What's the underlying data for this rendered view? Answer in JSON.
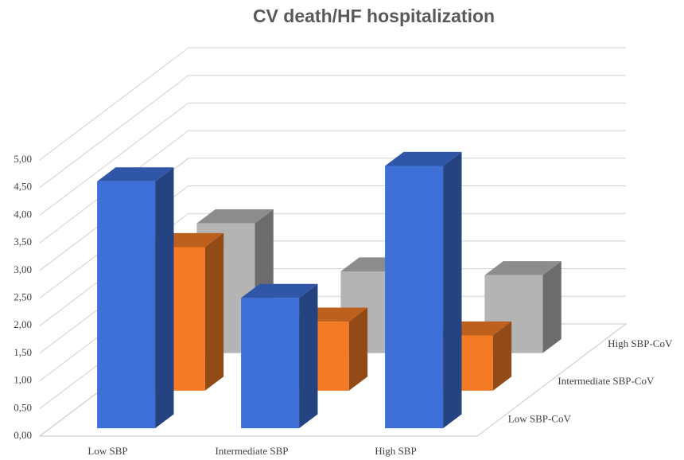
{
  "chart_data": {
    "type": "bar3d",
    "title": "CV death/HF hospitalization",
    "categories": [
      "Low SBP",
      "Intermediate SBP",
      "High SBP"
    ],
    "series": [
      {
        "name": "Low SBP-CoV",
        "color": "#3d6fd6",
        "values": [
          4.47,
          2.36,
          4.75
        ]
      },
      {
        "name": "Intermediate SBP-CoV",
        "color": "#f47b25",
        "values": [
          2.6,
          1.25,
          1.0
        ]
      },
      {
        "name": "High SBP-CoV",
        "color": "#b4b4b4",
        "values": [
          2.35,
          1.48,
          1.41
        ]
      }
    ],
    "ylim": [
      0,
      5
    ],
    "yticks": [
      {
        "value": 0,
        "label": "0,00"
      },
      {
        "value": 0.5,
        "label": "0,50"
      },
      {
        "value": 1,
        "label": "1,00"
      },
      {
        "value": 1.5,
        "label": "1,50"
      },
      {
        "value": 2,
        "label": "2,00"
      },
      {
        "value": 2.5,
        "label": "2,50"
      },
      {
        "value": 3,
        "label": "3,00"
      },
      {
        "value": 3.5,
        "label": "3,50"
      },
      {
        "value": 4,
        "label": "4,00"
      },
      {
        "value": 4.5,
        "label": "4,50"
      },
      {
        "value": 5,
        "label": "5,00"
      }
    ],
    "grid": true
  }
}
